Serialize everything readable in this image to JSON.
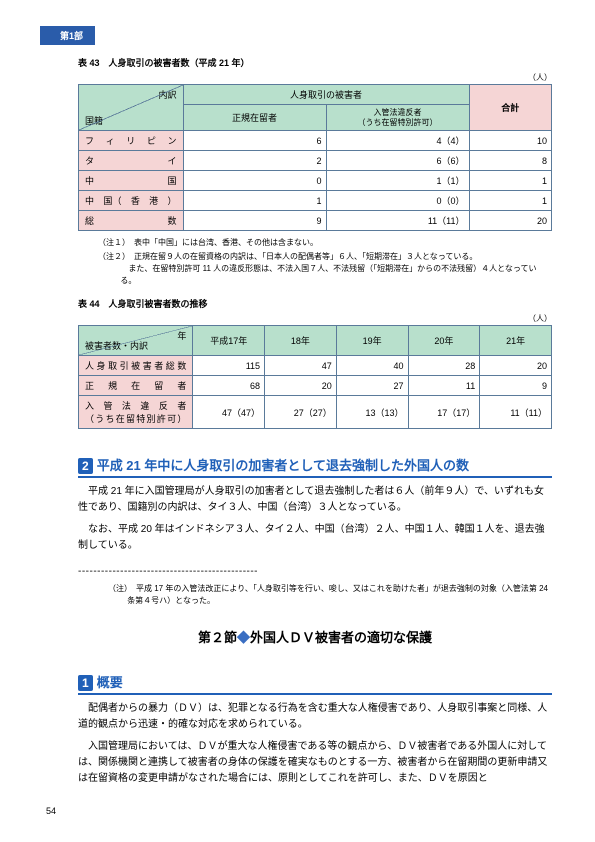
{
  "partLabel": "第1部",
  "pageNum": "54",
  "table43": {
    "caption": "表 43　人身取引の被害者数（平成 21 年）",
    "unit": "（人）",
    "diagTop": "内訳",
    "diagLeft": "国籍",
    "headers": {
      "victims": "人身取引の被害者",
      "regular": "正規在留者",
      "violation": "入管法違反者\n（うち在留特別許可）",
      "total": "合計"
    },
    "rows": [
      {
        "label": "フ　ィ　リ　ピ　ン",
        "c1": "6",
        "c2": "4（4）",
        "c3": "10"
      },
      {
        "label": "タ　　　　　　イ",
        "c1": "2",
        "c2": "6（6）",
        "c3": "8"
      },
      {
        "label": "中　　　　　　国",
        "c1": "0",
        "c2": "1（1）",
        "c3": "1"
      },
      {
        "label": "中　国（　香　港　）",
        "c1": "1",
        "c2": "0（0）",
        "c3": "1"
      },
      {
        "label": "総　　　　　　数",
        "c1": "9",
        "c2": "11（11）",
        "c3": "20"
      }
    ],
    "notes": [
      "（注１）　表中「中国」には台湾、香港、その他は含まない。",
      "（注２）　正規在留９人の在留資格の内訳は、「日本人の配偶者等」６人、「短期滞在」３人となっている。\n　また、在留特別許可 11 人の違反形態は、不法入国７人、不法残留（「短期滞在」からの不法残留）４人となっている。"
    ]
  },
  "table44": {
    "caption": "表 44　人身取引被害者数の推移",
    "unit": "（人）",
    "diagTop": "年",
    "diagLeft": "被害者数・内訳",
    "cols": [
      "平成17年",
      "18年",
      "19年",
      "20年",
      "21年"
    ],
    "rows": [
      {
        "label": "人身取引被害者総数",
        "v": [
          "115",
          "47",
          "40",
          "28",
          "20"
        ]
      },
      {
        "label": "正　規　在　留　者",
        "v": [
          "68",
          "20",
          "27",
          "11",
          "9"
        ]
      },
      {
        "label": "入 管 法 違 反 者\n（うち在留特別許可）",
        "v": [
          "47（47）",
          "27（27）",
          "13（13）",
          "17（17）",
          "11（11）"
        ]
      }
    ]
  },
  "sec2": {
    "num": "2",
    "title": "平成 21 年中に人身取引の加害者として退去強制した外国人の数",
    "p1": "平成 21 年に入国管理局が人身取引の加害者として退去強制した者は６人（前年９人）で、いずれも女性であり、国籍別の内訳は、タイ３人、中国（台湾）３人となっている。",
    "p2": "なお、平成 20 年はインドネシア３人、タイ２人、中国（台湾）２人、中国１人、韓国１人を、退去強制している。",
    "note": "（注）　平成 17 年の入管法改正により、「人身取引等を行い、唆し、又はこれを助けた者」が退去強制の対象（入管法第 24 条第４号ハ）となった。"
  },
  "node2": {
    "prefix": "第２節",
    "title": "外国人ＤＶ被害者の適切な保護"
  },
  "sec1": {
    "num": "1",
    "title": "概要",
    "p1": "配偶者からの暴力（ＤＶ）は、犯罪となる行為を含む重大な人権侵害であり、人身取引事案と同様、人道的観点から迅速・的確な対応を求められている。",
    "p2": "入国管理局においては、ＤＶが重大な人権侵害である等の観点から、ＤＶ被害者である外国人に対しては、関係機関と連携して被害者の身体の保護を確実なものとする一方、被害者から在留期間の更新申請又は在留資格の変更申請がなされた場合には、原則としてこれを許可し、また、ＤＶを原因と"
  }
}
